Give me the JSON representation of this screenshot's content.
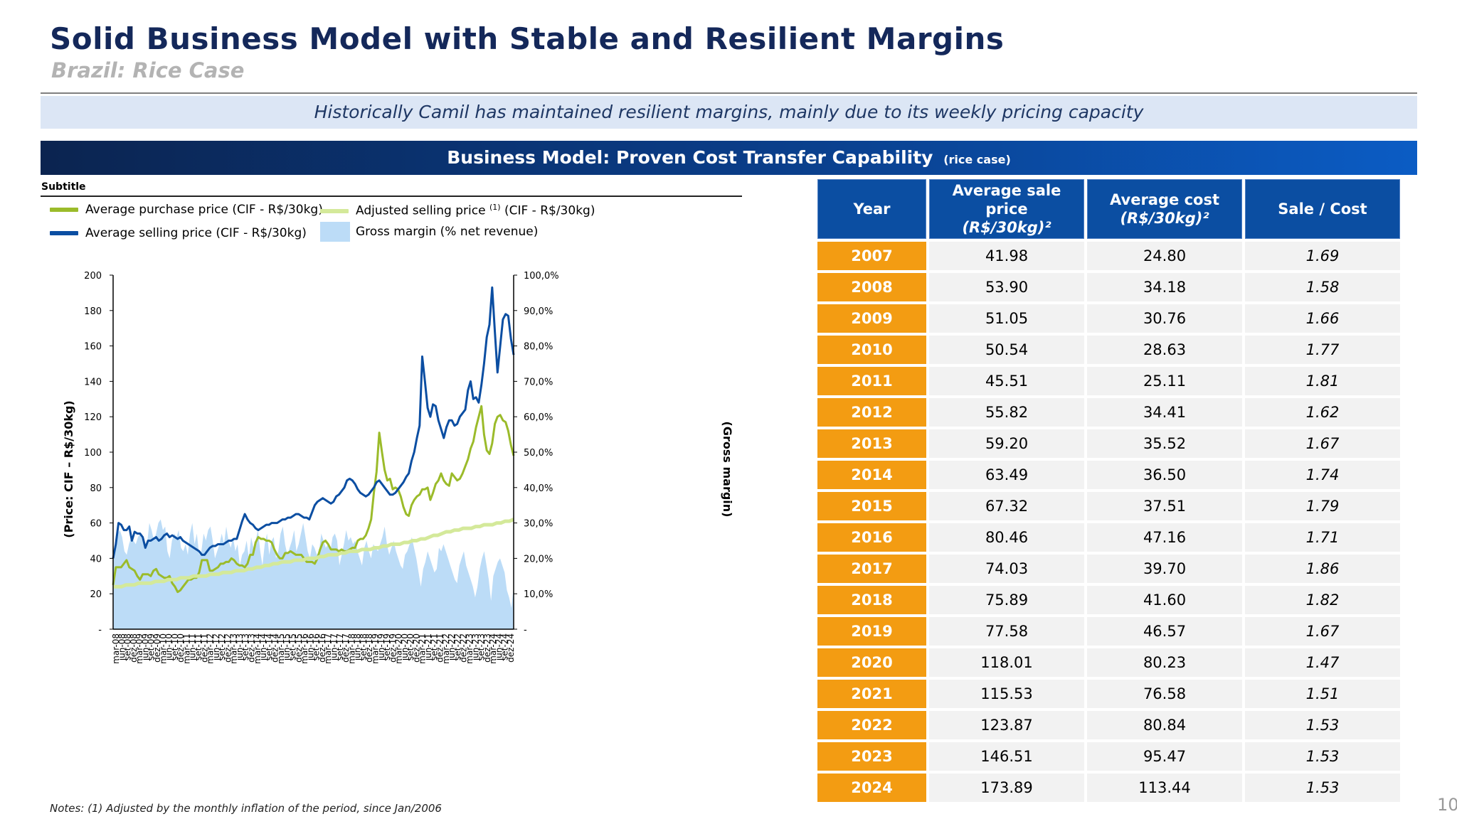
{
  "header": {
    "title": "Solid Business Model with Stable and Resilient Margins",
    "subtitle": "Brazil: Rice Case",
    "banner": "Historically Camil has maintained resilient margins, mainly due to its weekly pricing capacity",
    "section_title": "Business Model: Proven Cost Transfer Capability",
    "section_sub": "(rice case)"
  },
  "chart_subtitle": "Subtitle",
  "legend": [
    {
      "label": "Average purchase price (CIF - R$/30kg)",
      "color": "#9bbb2a",
      "marker": ""
    },
    {
      "label": "Adjusted selling price",
      "marker": "(1)",
      "suffix": "(CIF - R$/30kg)",
      "color": "#d4e99a"
    },
    {
      "label": "Average selling price (CIF - R$/30kg)",
      "color": "#0b4ea2",
      "marker": ""
    },
    {
      "label": "Gross margin (% net revenue)",
      "color": "#bcdcf7",
      "marker": ""
    }
  ],
  "chart_data": {
    "type": "line",
    "ylabel": "(Price: CIF – R$/30kg)",
    "y2label": "(Gross margin)",
    "ylim": [
      0,
      200
    ],
    "y2lim": [
      0,
      100
    ],
    "yticks": [
      "-",
      "20",
      "40",
      "60",
      "80",
      "100",
      "120",
      "140",
      "160",
      "180",
      "200"
    ],
    "y2ticks": [
      "-",
      "10,0%",
      "20,0%",
      "30,0%",
      "40,0%",
      "50,0%",
      "60,0%",
      "70,0%",
      "80,0%",
      "90,0%",
      "100,0%"
    ],
    "x_start": "mar-08",
    "x_end": "dez-24",
    "xticks": [
      "mar-08",
      "jun-08",
      "set-08",
      "dez-08",
      "mar-09",
      "jun-09",
      "set-09",
      "dez-09",
      "mar-10",
      "jun-10",
      "set-10",
      "dez-10",
      "mar-11",
      "jun-11",
      "set-11",
      "dez-11",
      "mar-12",
      "jun-12",
      "set-12",
      "dez-12",
      "mar-13",
      "jun-13",
      "set-13",
      "dez-13",
      "mar-14",
      "jun-14",
      "set-14",
      "dez-14",
      "mar-15",
      "jun-15",
      "set-15",
      "dez-15",
      "mar-16",
      "jun-16",
      "set-16",
      "dez-16",
      "mar-17",
      "jun-17",
      "set-17",
      "dez-17",
      "mar-18",
      "jun-18",
      "set-18",
      "dez-18",
      "mar-19",
      "jun-19",
      "set-19",
      "dez-19",
      "mar-20",
      "jun-20",
      "set-20",
      "dez-20",
      "mar-21",
      "jun-21",
      "set-21",
      "dez-21",
      "mar-22",
      "jun-22",
      "set-22",
      "dez-22",
      "mar-23",
      "jun-23",
      "set-23",
      "dez-23",
      "mar-24",
      "jun-24",
      "set-24",
      "dez-24"
    ],
    "series": [
      {
        "name": "Gross margin (% net revenue)",
        "axis": "right",
        "color": "#bcdcf7",
        "values": [
          20,
          24,
          27,
          28,
          26,
          22,
          21,
          24,
          26,
          25,
          24,
          26,
          27,
          25,
          23,
          24,
          30,
          28,
          25,
          27,
          30,
          31,
          28,
          29,
          22,
          20,
          25,
          27,
          26,
          28,
          23,
          22,
          24,
          21,
          27,
          30,
          24,
          27,
          21,
          22,
          27,
          25,
          28,
          29,
          25,
          20,
          22,
          24,
          27,
          24,
          29,
          25,
          23,
          26,
          22,
          24,
          18,
          21,
          22,
          25,
          20,
          26,
          23,
          25,
          28,
          22,
          18,
          24,
          27,
          21,
          25,
          26,
          20,
          22,
          27,
          29,
          24,
          21,
          23,
          25,
          28,
          22,
          24,
          27,
          30,
          26,
          22,
          20,
          24,
          23,
          21,
          22,
          27,
          25,
          23,
          24,
          22,
          26,
          27,
          25,
          18,
          21,
          24,
          28,
          25,
          26,
          24,
          25,
          22,
          20,
          18,
          23,
          25,
          22,
          20,
          24,
          23,
          22,
          24,
          26,
          29,
          24,
          21,
          23,
          25,
          22,
          20,
          18,
          17,
          21,
          22,
          24,
          26,
          23,
          20,
          16,
          12,
          17,
          19,
          22,
          20,
          18,
          16,
          17,
          23,
          22,
          24,
          22,
          20,
          18,
          16,
          14,
          13,
          18,
          20,
          22,
          18,
          16,
          14,
          12,
          9,
          12,
          17,
          20,
          22,
          18,
          14,
          8,
          15,
          17,
          19,
          20,
          18,
          16,
          11,
          9,
          6,
          12
        ]
      },
      {
        "name": "Average purchase price (CIF - R$/30kg)",
        "axis": "left",
        "color": "#9bbb2a",
        "values": [
          25,
          35,
          35,
          35,
          37,
          39,
          35,
          34,
          33,
          30,
          28,
          31,
          31,
          31,
          30,
          33,
          34,
          31,
          30,
          29,
          29,
          30,
          26,
          24,
          21,
          22,
          24,
          26,
          28,
          28,
          29,
          29,
          32,
          39,
          39,
          39,
          33,
          33,
          34,
          35,
          37,
          37,
          38,
          38,
          40,
          39,
          37,
          36,
          36,
          35,
          37,
          42,
          42,
          49,
          52,
          51,
          51,
          50,
          50,
          49,
          45,
          42,
          40,
          40,
          43,
          43,
          44,
          43,
          42,
          42,
          42,
          40,
          38,
          38,
          38,
          37,
          40,
          45,
          49,
          50,
          48,
          45,
          45,
          45,
          44,
          45,
          44,
          44,
          45,
          46,
          46,
          50,
          51,
          51,
          53,
          57,
          62,
          77,
          89,
          111,
          100,
          90,
          84,
          85,
          79,
          80,
          79,
          75,
          69,
          65,
          64,
          70,
          73,
          75,
          76,
          79,
          79,
          80,
          73,
          77,
          82,
          84,
          88,
          84,
          82,
          81,
          88,
          86,
          84,
          85,
          88,
          92,
          96,
          102,
          106,
          114,
          120,
          126,
          110,
          101,
          99,
          105,
          116,
          120,
          121,
          118,
          117,
          112,
          104,
          98
        ],
        "note": "digitized approx"
      },
      {
        "name": "Adjusted selling price (1) (CIF - R$/30kg)",
        "axis": "left",
        "color": "#d4e99a",
        "values": [
          24,
          24,
          24,
          25,
          25,
          25,
          26,
          26,
          26,
          26,
          27,
          27,
          27,
          28,
          28,
          28,
          29,
          29,
          29,
          30,
          30,
          30,
          30,
          31,
          31,
          31,
          32,
          32,
          32,
          33,
          33,
          33,
          34,
          34,
          35,
          35,
          36,
          36,
          37,
          37,
          38,
          38,
          38,
          39,
          39,
          39,
          40,
          40,
          40,
          41,
          41,
          42,
          42,
          42,
          43,
          43,
          44,
          44,
          44,
          45,
          45,
          45,
          46,
          46,
          47,
          47,
          48,
          48,
          48,
          49,
          49,
          50,
          50,
          51,
          51,
          52,
          53,
          53,
          54,
          55,
          55,
          56,
          56,
          57,
          57,
          57,
          58,
          58,
          59,
          59,
          59,
          60,
          60,
          61,
          61,
          62
        ]
      },
      {
        "name": "Average selling price (CIF - R$/30kg)",
        "axis": "left",
        "color": "#0b4ea2",
        "values": [
          40,
          48,
          60,
          59,
          56,
          56,
          58,
          50,
          55,
          54,
          54,
          52,
          46,
          50,
          50,
          51,
          52,
          50,
          51,
          53,
          54,
          52,
          53,
          52,
          51,
          52,
          50,
          49,
          48,
          47,
          46,
          45,
          44,
          42,
          42,
          44,
          46,
          47,
          47,
          48,
          48,
          48,
          49,
          50,
          50,
          51,
          51,
          56,
          61,
          65,
          62,
          60,
          59,
          57,
          56,
          57,
          58,
          59,
          59,
          60,
          60,
          60,
          61,
          62,
          62,
          63,
          63,
          64,
          65,
          65,
          64,
          63,
          63,
          62,
          66,
          70,
          72,
          73,
          74,
          73,
          72,
          71,
          72,
          75,
          76,
          78,
          80,
          84,
          85,
          84,
          82,
          79,
          77,
          76,
          75,
          76,
          78,
          80,
          83,
          84,
          82,
          80,
          78,
          76,
          76,
          77,
          79,
          81,
          83,
          86,
          88,
          95,
          100,
          108,
          115,
          154,
          140,
          125,
          120,
          127,
          126,
          118,
          113,
          108,
          114,
          118,
          118,
          115,
          116,
          120,
          122,
          124,
          135,
          140,
          130,
          131,
          128,
          138,
          150,
          165,
          172,
          193,
          168,
          145,
          160,
          175,
          178,
          177,
          164,
          155
        ]
      }
    ]
  },
  "table": {
    "headers": [
      "Year",
      "Average sale price",
      "(R$/30kg)²",
      "Average cost",
      "(R$/30kg)²",
      "Sale / Cost"
    ],
    "rows": [
      {
        "year": "2007",
        "sale": "41.98",
        "cost": "24.80",
        "ratio": "1.69"
      },
      {
        "year": "2008",
        "sale": "53.90",
        "cost": "34.18",
        "ratio": "1.58"
      },
      {
        "year": "2009",
        "sale": "51.05",
        "cost": "30.76",
        "ratio": "1.66"
      },
      {
        "year": "2010",
        "sale": "50.54",
        "cost": "28.63",
        "ratio": "1.77"
      },
      {
        "year": "2011",
        "sale": "45.51",
        "cost": "25.11",
        "ratio": "1.81"
      },
      {
        "year": "2012",
        "sale": "55.82",
        "cost": "34.41",
        "ratio": "1.62"
      },
      {
        "year": "2013",
        "sale": "59.20",
        "cost": "35.52",
        "ratio": "1.67"
      },
      {
        "year": "2014",
        "sale": "63.49",
        "cost": "36.50",
        "ratio": "1.74"
      },
      {
        "year": "2015",
        "sale": "67.32",
        "cost": "37.51",
        "ratio": "1.79"
      },
      {
        "year": "2016",
        "sale": "80.46",
        "cost": "47.16",
        "ratio": "1.71"
      },
      {
        "year": "2017",
        "sale": "74.03",
        "cost": "39.70",
        "ratio": "1.86"
      },
      {
        "year": "2018",
        "sale": "75.89",
        "cost": "41.60",
        "ratio": "1.82"
      },
      {
        "year": "2019",
        "sale": "77.58",
        "cost": "46.57",
        "ratio": "1.67"
      },
      {
        "year": "2020",
        "sale": "118.01",
        "cost": "80.23",
        "ratio": "1.47"
      },
      {
        "year": "2021",
        "sale": "115.53",
        "cost": "76.58",
        "ratio": "1.51"
      },
      {
        "year": "2022",
        "sale": "123.87",
        "cost": "80.84",
        "ratio": "1.53"
      },
      {
        "year": "2023",
        "sale": "146.51",
        "cost": "95.47",
        "ratio": "1.53"
      },
      {
        "year": "2024",
        "sale": "173.89",
        "cost": "113.44",
        "ratio": "1.53"
      }
    ]
  },
  "note": "Notes: (1) Adjusted by the monthly inflation of the period, since Jan/2006",
  "page_number": "10"
}
